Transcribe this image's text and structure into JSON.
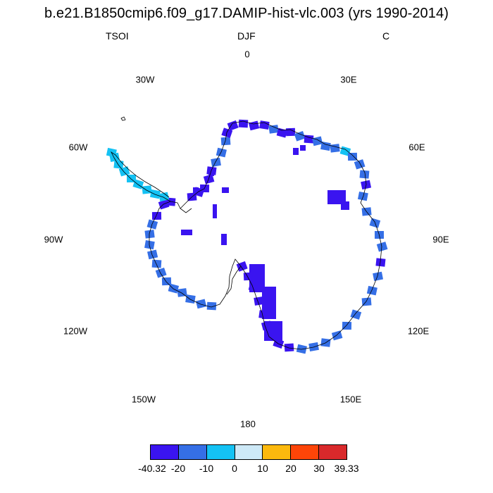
{
  "header": {
    "title": "b.e21.B1850cmip6.f09_g17.DAMIP-hist-vlc.003 (yrs 1990-2014)",
    "variable": "TSOI",
    "season": "DJF",
    "units": "C"
  },
  "map": {
    "projection": "south-polar-stereographic",
    "region": "Antarctica",
    "longitude_labels": [
      "0",
      "30E",
      "60E",
      "90E",
      "120E",
      "150E",
      "180",
      "150W",
      "120W",
      "90W",
      "60W",
      "30W"
    ]
  },
  "colorbar": {
    "colors": [
      "#3a14f0",
      "#356fe6",
      "#14c2f4",
      "#cde9f7",
      "#fcb90e",
      "#fd4508",
      "#d9292b"
    ],
    "labels": [
      "-40.32",
      "-20",
      "-10",
      "0",
      "10",
      "20",
      "30",
      "39.33"
    ],
    "bounds": [
      -40.32,
      -20,
      -10,
      0,
      10,
      20,
      30,
      39.33
    ]
  }
}
